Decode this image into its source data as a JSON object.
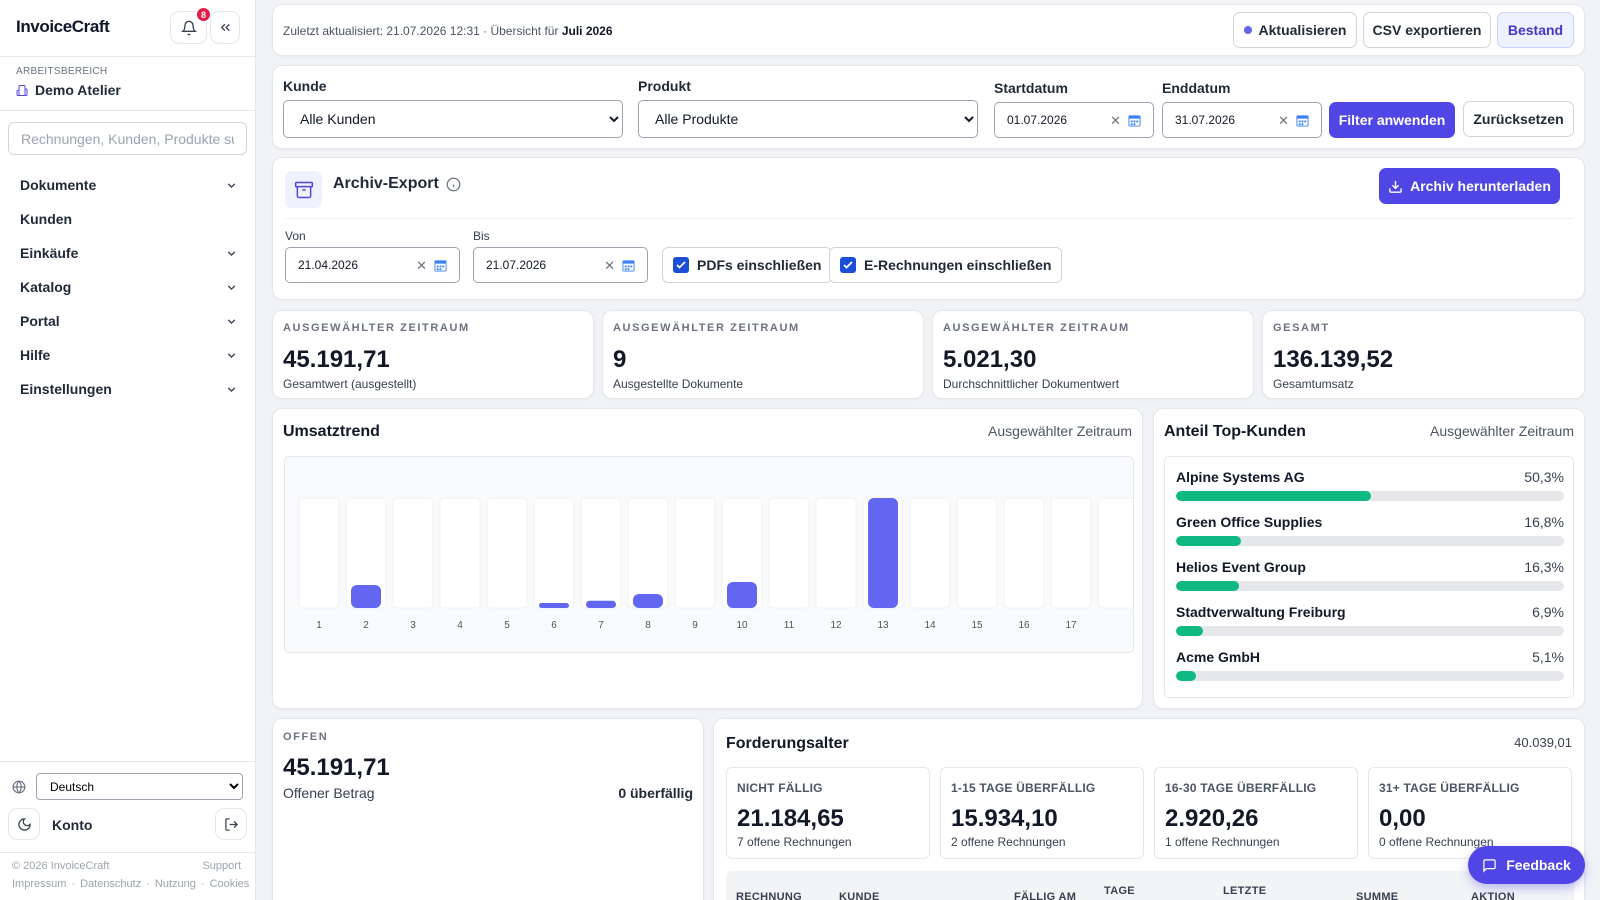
{
  "app": {
    "name": "InvoiceCraft",
    "notifications": "8"
  },
  "workspace": {
    "label": "ARBEITSBEREICH",
    "name": "Demo Atelier"
  },
  "sidebar": {
    "search_placeholder": "Rechnungen, Kunden, Produkte su",
    "items": [
      {
        "label": "Dokumente",
        "expandable": true
      },
      {
        "label": "Kunden",
        "expandable": false
      },
      {
        "label": "Einkäufe",
        "expandable": true
      },
      {
        "label": "Katalog",
        "expandable": true
      },
      {
        "label": "Portal",
        "expandable": true
      },
      {
        "label": "Hilfe",
        "expandable": true
      },
      {
        "label": "Einstellungen",
        "expandable": true
      }
    ],
    "language": "Deutsch",
    "account": "Konto",
    "copyright": "© 2026 InvoiceCraft",
    "support": "Support",
    "legal": [
      "Impressum",
      "·",
      "Datenschutz",
      "·",
      "Nutzung",
      "·",
      "Cookies"
    ]
  },
  "topbar": {
    "updated_prefix": "Zuletzt aktualisiert: 21.07.2026 12:31 · Übersicht für ",
    "period": "Juli 2026",
    "refresh": "Aktualisieren",
    "export_csv": "CSV exportieren",
    "stock": "Bestand"
  },
  "filters": {
    "customer_label": "Kunde",
    "customer_value": "Alle Kunden",
    "product_label": "Produkt",
    "product_value": "Alle Produkte",
    "start_label": "Startdatum",
    "start_value": "01.07.2026",
    "end_label": "Enddatum",
    "end_value": "31.07.2026",
    "apply": "Filter anwenden",
    "reset": "Zurücksetzen"
  },
  "archive": {
    "title": "Archiv-Export",
    "download": "Archiv herunterladen",
    "from_label": "Von",
    "from_value": "21.04.2026",
    "to_label": "Bis",
    "to_value": "21.07.2026",
    "include_pdfs": "PDFs einschließen",
    "include_einvoices": "E-Rechnungen einschließen"
  },
  "kpis": [
    {
      "label": "AUSGEWÄHLTER ZEITRAUM",
      "value": "45.191,71",
      "sub": "Gesamtwert (ausgestellt)"
    },
    {
      "label": "AUSGEWÄHLTER ZEITRAUM",
      "value": "9",
      "sub": "Ausgestellte Dokumente"
    },
    {
      "label": "AUSGEWÄHLTER ZEITRAUM",
      "value": "5.021,30",
      "sub": "Durchschnittlicher Dokumentwert"
    },
    {
      "label": "GESAMT",
      "value": "136.139,52",
      "sub": "Gesamtumsatz"
    }
  ],
  "trend": {
    "title": "Umsatztrend",
    "meta": "Ausgewählter Zeitraum"
  },
  "chart_data": {
    "type": "bar",
    "title": "Umsatztrend",
    "categories": [
      "1",
      "2",
      "3",
      "4",
      "5",
      "6",
      "7",
      "8",
      "9",
      "10",
      "11",
      "12",
      "13",
      "14",
      "15",
      "16",
      "17"
    ],
    "values": [
      0,
      2300,
      0,
      0,
      0,
      480,
      720,
      1400,
      0,
      2600,
      0,
      0,
      11000,
      0,
      0,
      0,
      0
    ],
    "ylim": [
      0,
      11000
    ],
    "grid": false,
    "color": "#6366f1"
  },
  "top_customers": {
    "title": "Anteil Top-Kunden",
    "meta": "Ausgewählter Zeitraum",
    "items": [
      {
        "name": "Alpine Systems AG",
        "pct": "50,3%",
        "share": 0.503
      },
      {
        "name": "Green Office Supplies",
        "pct": "16,8%",
        "share": 0.168
      },
      {
        "name": "Helios Event Group",
        "pct": "16,3%",
        "share": 0.163
      },
      {
        "name": "Stadtverwaltung Freiburg",
        "pct": "6,9%",
        "share": 0.069
      },
      {
        "name": "Acme GmbH",
        "pct": "5,1%",
        "share": 0.051
      }
    ]
  },
  "open": {
    "label": "OFFEN",
    "value": "45.191,71",
    "sub": "Offener Betrag",
    "overdue": "0 überfällig"
  },
  "aging": {
    "title": "Forderungsalter",
    "total": "40.039,01",
    "tiles": [
      {
        "label": "NICHT FÄLLIG",
        "value": "21.184,65",
        "sub": "7 offene Rechnungen"
      },
      {
        "label": "1-15 TAGE ÜBERFÄLLIG",
        "value": "15.934,10",
        "sub": "2 offene Rechnungen"
      },
      {
        "label": "16-30 TAGE ÜBERFÄLLIG",
        "value": "2.920,26",
        "sub": "1 offene Rechnungen"
      },
      {
        "label": "31+ TAGE ÜBERFÄLLIG",
        "value": "0,00",
        "sub": "0 offene Rechnungen"
      }
    ],
    "columns": [
      "RECHNUNG",
      "KUNDE",
      "FÄLLIG AM",
      "TAGE",
      "LETZTE",
      "SUMME",
      "AKTION"
    ]
  },
  "feedback": "Feedback"
}
